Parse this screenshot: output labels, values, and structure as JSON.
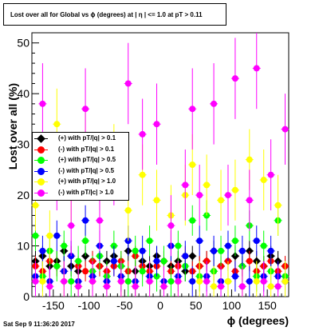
{
  "chart_data": {
    "type": "scatter",
    "title": "Lost over all for Global vs ϕ (degrees) at | η | <= 1.0 at pT > 0.11",
    "xlabel": "ϕ (degrees)",
    "ylabel": "Lost over all (%)",
    "xlim": [
      -180,
      180
    ],
    "ylim": [
      0,
      52
    ],
    "xticks": [
      -150,
      -100,
      -50,
      0,
      50,
      100,
      150
    ],
    "yticks": [
      0,
      10,
      20,
      30,
      40,
      50
    ],
    "grid": false,
    "legend_placement": "middle-left",
    "series": [
      {
        "name": "(+) with pT/|q| > 0.1",
        "color": "#000000",
        "marker": "diamond",
        "x": [
          -175,
          -165,
          -155,
          -145,
          -135,
          -125,
          -115,
          -105,
          -95,
          -85,
          -75,
          -65,
          -55,
          -45,
          -35,
          -25,
          -15,
          -5,
          5,
          15,
          25,
          35,
          45,
          55,
          65,
          75,
          85,
          95,
          105,
          115,
          125,
          135,
          145,
          155,
          165,
          175
        ],
        "y": [
          7,
          8,
          6,
          7,
          9,
          6,
          5,
          8,
          7,
          6,
          7,
          8,
          6,
          9,
          5,
          7,
          6,
          8,
          7,
          6,
          7,
          5,
          8,
          6,
          7,
          9,
          6,
          7,
          8,
          6,
          9,
          7,
          6,
          8,
          7,
          6
        ],
        "yerr": [
          2,
          2,
          2,
          2,
          2,
          2,
          2,
          2,
          2,
          2,
          2,
          2,
          2,
          2,
          2,
          2,
          2,
          2,
          2,
          2,
          2,
          2,
          2,
          2,
          2,
          2,
          2,
          2,
          2,
          2,
          2,
          2,
          2,
          2,
          2,
          2
        ]
      },
      {
        "name": "(-) with pT/|q| > 0.1",
        "color": "#ff0000",
        "marker": "circle",
        "x": [
          -175,
          -165,
          -155,
          -145,
          -135,
          -125,
          -115,
          -105,
          -95,
          -85,
          -75,
          -65,
          -55,
          -45,
          -35,
          -25,
          -15,
          -5,
          5,
          15,
          25,
          35,
          45,
          55,
          65,
          75,
          85,
          95,
          105,
          115,
          125,
          135,
          145,
          155,
          165,
          175
        ],
        "y": [
          6,
          5,
          7,
          6,
          5,
          8,
          6,
          5,
          7,
          6,
          5,
          6,
          7,
          5,
          8,
          6,
          5,
          6,
          7,
          5,
          6,
          8,
          5,
          6,
          7,
          5,
          6,
          7,
          5,
          6,
          7,
          5,
          6,
          7,
          5,
          6
        ],
        "yerr": [
          2,
          2,
          2,
          2,
          2,
          2,
          2,
          2,
          2,
          2,
          2,
          2,
          2,
          2,
          2,
          2,
          2,
          2,
          2,
          2,
          2,
          2,
          2,
          2,
          2,
          2,
          2,
          2,
          2,
          2,
          2,
          2,
          2,
          2,
          2,
          2
        ]
      },
      {
        "name": "(+) with pT/|q| > 0.5",
        "color": "#00ff00",
        "marker": "circle",
        "x": [
          -175,
          -165,
          -155,
          -145,
          -135,
          -125,
          -115,
          -105,
          -95,
          -85,
          -75,
          -65,
          -55,
          -45,
          -35,
          -25,
          -15,
          -5,
          5,
          15,
          25,
          35,
          45,
          55,
          65,
          75,
          85,
          95,
          105,
          115,
          125,
          135,
          145,
          155,
          165,
          175
        ],
        "y": [
          12,
          4,
          9,
          6,
          10,
          3,
          7,
          11,
          5,
          8,
          4,
          10,
          6,
          3,
          9,
          5,
          11,
          4,
          7,
          3,
          10,
          6,
          15,
          4,
          16,
          5,
          9,
          3,
          11,
          6,
          14,
          4,
          10,
          5,
          15,
          4
        ],
        "yerr": [
          3,
          3,
          3,
          3,
          3,
          3,
          3,
          3,
          3,
          3,
          3,
          3,
          3,
          3,
          3,
          3,
          3,
          3,
          3,
          3,
          3,
          3,
          3,
          3,
          3,
          3,
          3,
          3,
          3,
          3,
          3,
          3,
          3,
          3,
          3,
          3
        ]
      },
      {
        "name": "(-) with pT/|q| > 0.5",
        "color": "#0000ff",
        "marker": "circle",
        "x": [
          -175,
          -165,
          -155,
          -145,
          -135,
          -125,
          -115,
          -105,
          -95,
          -85,
          -75,
          -65,
          -55,
          -45,
          -35,
          -25,
          -15,
          -5,
          5,
          15,
          25,
          35,
          45,
          55,
          65,
          75,
          85,
          95,
          105,
          115,
          125,
          135,
          145,
          155,
          165,
          175
        ],
        "y": [
          4,
          9,
          3,
          12,
          5,
          8,
          3,
          15,
          4,
          10,
          3,
          7,
          4,
          11,
          3,
          9,
          4,
          7,
          3,
          10,
          4,
          8,
          3,
          11,
          4,
          9,
          3,
          10,
          4,
          9,
          3,
          11,
          4,
          9,
          4,
          3
        ],
        "yerr": [
          3,
          3,
          3,
          3,
          3,
          3,
          3,
          3,
          3,
          3,
          3,
          3,
          3,
          3,
          3,
          3,
          3,
          3,
          3,
          3,
          3,
          3,
          3,
          3,
          3,
          3,
          3,
          3,
          3,
          3,
          3,
          3,
          3,
          3,
          3,
          3
        ]
      },
      {
        "name": "(+) with pT/|q| > 1.0",
        "color": "#ffff00",
        "marker": "circle",
        "x": [
          -175,
          -165,
          -155,
          -145,
          -135,
          -125,
          -115,
          -105,
          -95,
          -85,
          -75,
          -65,
          -55,
          -45,
          -35,
          -25,
          -15,
          -5,
          5,
          15,
          25,
          35,
          45,
          55,
          65,
          75,
          85,
          95,
          105,
          115,
          125,
          135,
          145,
          155,
          165,
          175
        ],
        "y": [
          18,
          3,
          12,
          34,
          3,
          20,
          2,
          30,
          3,
          23,
          2,
          28,
          3,
          17,
          2,
          24,
          3,
          19,
          2,
          16,
          3,
          20,
          26,
          3,
          22,
          2,
          19,
          3,
          21,
          2,
          27,
          3,
          23,
          2,
          18,
          3
        ],
        "yerr": [
          5,
          4,
          5,
          7,
          4,
          6,
          4,
          7,
          4,
          6,
          4,
          6,
          4,
          6,
          4,
          6,
          4,
          6,
          4,
          6,
          4,
          6,
          6,
          4,
          6,
          4,
          6,
          4,
          6,
          4,
          6,
          4,
          6,
          4,
          6,
          4
        ]
      },
      {
        "name": "(-) with pT/|c| > 1.0",
        "color": "#ff00ff",
        "marker": "circle",
        "x": [
          -175,
          -165,
          -155,
          -145,
          -135,
          -125,
          -115,
          -105,
          -95,
          -85,
          -75,
          -65,
          -55,
          -45,
          -35,
          -25,
          -15,
          -5,
          5,
          15,
          25,
          35,
          45,
          55,
          65,
          75,
          85,
          95,
          105,
          115,
          125,
          135,
          145,
          155,
          165,
          175
        ],
        "y": [
          3,
          38,
          2,
          24,
          3,
          14,
          2,
          37,
          3,
          15,
          2,
          25,
          3,
          42,
          2,
          32,
          3,
          34,
          2,
          14,
          3,
          22,
          37,
          20,
          3,
          38,
          2,
          20,
          43,
          2,
          19,
          45,
          3,
          24,
          2,
          33
        ],
        "yerr": [
          4,
          8,
          4,
          7,
          4,
          6,
          4,
          8,
          4,
          6,
          4,
          7,
          4,
          8,
          4,
          7,
          4,
          8,
          4,
          6,
          4,
          7,
          8,
          6,
          4,
          8,
          4,
          6,
          8,
          4,
          6,
          8,
          4,
          7,
          4,
          7
        ]
      }
    ]
  },
  "footer": {
    "timestamp": "Sat Sep  9 11:36:20 2017"
  }
}
